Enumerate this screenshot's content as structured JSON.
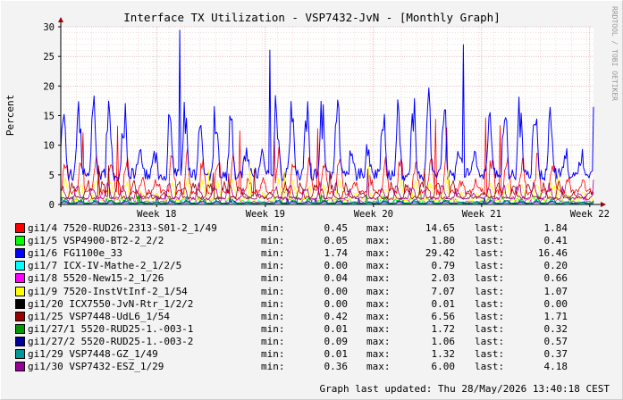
{
  "watermark": "RRDTOOL / TOBI OETIKER",
  "legend_keys": {
    "min": "min:",
    "max": "max:",
    "last": "last:"
  },
  "footer": {
    "updated": "Graph last updated: Thu 28/May/2026 13:40:18 CEST"
  },
  "chart_data": {
    "type": "line",
    "title": "Interface TX Utilization - VSP7432-JvN - [Monthly Graph]",
    "ylabel": "Percent",
    "ylim": [
      0,
      30
    ],
    "yticks": [
      0,
      5,
      10,
      15,
      20,
      25,
      30
    ],
    "xticks": [
      {
        "label": "Week 18",
        "pos": 0.18
      },
      {
        "label": "Week 19",
        "pos": 0.384
      },
      {
        "label": "Week 20",
        "pos": 0.587
      },
      {
        "label": "Week 21",
        "pos": 0.79
      },
      {
        "label": "Week 22",
        "pos": 0.993
      }
    ],
    "grid": true,
    "series": [
      {
        "name": "gi1/4 7520-RUD26-2313-S01-2_1/49",
        "color": "#ff0000",
        "min": "0.45",
        "max": "14.65",
        "last": "1.84"
      },
      {
        "name": "gi1/5 VSP4900-BT2-2_2/2",
        "color": "#00ff00",
        "min": "0.05",
        "max": "1.80",
        "last": "0.41"
      },
      {
        "name": "gi1/6 FG1100e_33",
        "color": "#0000ff",
        "min": "1.74",
        "max": "29.42",
        "last": "16.46"
      },
      {
        "name": "gi1/7 ICX-IV-Mathe-2_1/2/5",
        "color": "#00ffff",
        "min": "0.00",
        "max": "0.79",
        "last": "0.20"
      },
      {
        "name": "gi1/8 5520-New15-2_1/26",
        "color": "#ff00ff",
        "min": "0.04",
        "max": "2.03",
        "last": "0.66"
      },
      {
        "name": "gi1/9 7520-InstVtInf-2_1/54",
        "color": "#ffff00",
        "min": "0.00",
        "max": "7.07",
        "last": "1.07"
      },
      {
        "name": "gi1/20 ICX7550-JvN-Rtr_1/2/2",
        "color": "#000000",
        "min": "0.00",
        "max": "0.01",
        "last": "0.00"
      },
      {
        "name": "gi1/25 VSP7448-UdL6_1/54",
        "color": "#990000",
        "min": "0.42",
        "max": "6.56",
        "last": "1.71"
      },
      {
        "name": "gi1/27/1 5520-RUD25-1.-003-1",
        "color": "#009900",
        "min": "0.01",
        "max": "1.72",
        "last": "0.32"
      },
      {
        "name": "gi1/27/2 5520-RUD25-1.-003-2",
        "color": "#000099",
        "min": "0.09",
        "max": "1.06",
        "last": "0.57"
      },
      {
        "name": "gi1/29 VSP7448-GZ_1/49",
        "color": "#009999",
        "min": "0.01",
        "max": "1.32",
        "last": "0.37"
      },
      {
        "name": "gi1/30 VSP7432-ESZ_1/29",
        "color": "#990099",
        "min": "0.36",
        "max": "6.00",
        "last": "4.18"
      }
    ]
  }
}
